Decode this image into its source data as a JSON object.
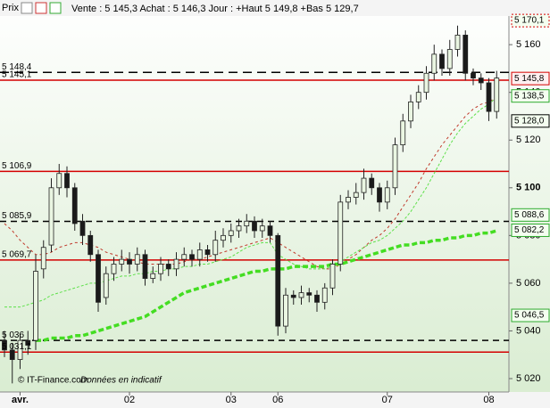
{
  "chart_data": {
    "type": "candlestick",
    "header": {
      "tab": "Prix",
      "quote": "Vente : 5 145,3 Achat : 5 146,3 Jour : +Haut 5 149,8 +Bas 5 129,7"
    },
    "footer": {
      "source": "© IT-Finance.com",
      "note": "Données en indicatif"
    },
    "categories": [
      null,
      null,
      "avr.",
      null,
      null,
      null,
      null,
      null,
      null,
      null,
      null,
      null,
      null,
      null,
      null,
      null,
      "02",
      null,
      null,
      null,
      null,
      null,
      null,
      null,
      null,
      null,
      null,
      null,
      null,
      "03",
      null,
      null,
      null,
      null,
      null,
      "06",
      null,
      null,
      null,
      null,
      null,
      null,
      null,
      null,
      null,
      null,
      null,
      null,
      null,
      "07",
      null,
      null,
      null,
      null,
      null,
      null,
      null,
      null,
      null,
      null,
      null,
      null,
      "08",
      null
    ],
    "open": [
      5036,
      5032,
      5028,
      5036,
      5036,
      5066,
      5076,
      5100,
      5106,
      5100,
      5086,
      5080,
      5072,
      5054,
      5064,
      5068,
      5070,
      5068,
      5072,
      5062,
      5064,
      5068,
      5066,
      5070,
      5072,
      5070,
      5074,
      5072,
      5078,
      5080,
      5082,
      5084,
      5086,
      5082,
      5084,
      5080,
      5042,
      5055,
      5054,
      5056,
      5055,
      5052,
      5058,
      5068,
      5094,
      5096,
      5098,
      5104,
      5100,
      5094,
      5100,
      5118,
      5128,
      5136,
      5140,
      5148,
      5156,
      5150,
      5158,
      5164,
      5148,
      5146,
      5144,
      5132
    ],
    "high": [
      5040,
      5035,
      5039,
      5040,
      5072,
      5078,
      5104,
      5110,
      5109,
      5102,
      5089,
      5082,
      5074,
      5067,
      5071,
      5074,
      5073,
      5075,
      5074,
      5067,
      5071,
      5070,
      5073,
      5075,
      5074,
      5077,
      5076,
      5082,
      5083,
      5085,
      5087,
      5089,
      5088,
      5087,
      5086,
      5081,
      5058,
      5057,
      5059,
      5058,
      5057,
      5060,
      5070,
      5097,
      5099,
      5102,
      5108,
      5106,
      5102,
      5103,
      5121,
      5131,
      5139,
      5143,
      5151,
      5160,
      5158,
      5162,
      5168,
      5166,
      5150,
      5148,
      5146,
      5149
    ],
    "low": [
      5029,
      5018,
      5024,
      5030,
      5032,
      5062,
      5073,
      5097,
      5096,
      5082,
      5076,
      5069,
      5048,
      5051,
      5061,
      5065,
      5064,
      5065,
      5059,
      5060,
      5061,
      5063,
      5063,
      5067,
      5067,
      5067,
      5069,
      5069,
      5075,
      5077,
      5079,
      5081,
      5079,
      5079,
      5077,
      5038,
      5039,
      5051,
      5051,
      5052,
      5048,
      5049,
      5055,
      5065,
      5091,
      5093,
      5095,
      5097,
      5090,
      5091,
      5097,
      5115,
      5125,
      5133,
      5137,
      5145,
      5147,
      5147,
      5155,
      5145,
      5143,
      5141,
      5128,
      5129
    ],
    "close": [
      5032,
      5028,
      5036,
      5034,
      5065,
      5075,
      5100,
      5106,
      5100,
      5085,
      5080,
      5072,
      5052,
      5064,
      5068,
      5070,
      5068,
      5072,
      5062,
      5064,
      5068,
      5066,
      5070,
      5072,
      5070,
      5074,
      5072,
      5078,
      5080,
      5082,
      5084,
      5086,
      5082,
      5084,
      5080,
      5042,
      5055,
      5054,
      5056,
      5055,
      5052,
      5058,
      5068,
      5094,
      5096,
      5098,
      5104,
      5100,
      5094,
      5100,
      5118,
      5128,
      5136,
      5140,
      5148,
      5156,
      5150,
      5158,
      5164,
      5148,
      5146,
      5144,
      5132,
      5146
    ],
    "up_color": "#eaf6e2",
    "down_color": "#1a1a1a",
    "series": [
      {
        "color": "#c0392b",
        "width": 1,
        "dash": "3,3",
        "values": [
          5085,
          5082,
          5078,
          5075,
          5072,
          5072,
          5073,
          5075,
          5076,
          5077,
          5077,
          5076,
          5075,
          5073,
          5072,
          5071,
          5070,
          5069,
          5068,
          5068,
          5068,
          5068,
          5068,
          5069,
          5070,
          5070,
          5071,
          5072,
          5073,
          5074,
          5075,
          5076,
          5077,
          5078,
          5079,
          5077,
          5075,
          5073,
          5071,
          5069,
          5067,
          5066,
          5066,
          5068,
          5070,
          5072,
          5075,
          5078,
          5080,
          5083,
          5087,
          5092,
          5097,
          5102,
          5108,
          5113,
          5118,
          5122,
          5126,
          5130,
          5133,
          5135,
          5136,
          5138
        ]
      },
      {
        "color": "#5ee04a",
        "width": 1,
        "dash": "3,2",
        "values": [
          5050,
          5050,
          5050,
          5051,
          5052,
          5053,
          5055,
          5056,
          5057,
          5058,
          5059,
          5060,
          5060,
          5061,
          5062,
          5063,
          5063,
          5064,
          5064,
          5065,
          5065,
          5066,
          5066,
          5067,
          5067,
          5068,
          5068,
          5069,
          5070,
          5071,
          5073,
          5075,
          5076,
          5077,
          5077,
          5072,
          5070,
          5068,
          5067,
          5066,
          5066,
          5066,
          5067,
          5069,
          5071,
          5073,
          5075,
          5077,
          5078,
          5080,
          5083,
          5086,
          5090,
          5095,
          5100,
          5106,
          5112,
          5118,
          5123,
          5127,
          5130,
          5133,
          5135,
          5138
        ]
      },
      {
        "color": "#44dd22",
        "width": 3.5,
        "dash": "6,3",
        "values": [
          null,
          null,
          null,
          null,
          5036,
          5036,
          5037,
          5037,
          5037,
          5038,
          5038,
          5039,
          5040,
          5041,
          5042,
          5043,
          5044,
          5045,
          5046,
          5048,
          5050,
          5052,
          5054,
          5056,
          5057,
          5058,
          5059,
          5060,
          5061,
          5062,
          5063,
          5064,
          5065,
          5065,
          5066,
          5066,
          5066,
          5067,
          5067,
          5067,
          5067,
          5067,
          5068,
          5068,
          5069,
          5070,
          5071,
          5072,
          5073,
          5074,
          5075,
          5076,
          5076,
          5077,
          5077,
          5078,
          5078,
          5079,
          5079,
          5080,
          5080,
          5081,
          5081,
          5082
        ]
      }
    ],
    "levels": [
      {
        "value": 5148.4,
        "label": "5 148,4",
        "color": "#000",
        "dash": "10,6"
      },
      {
        "value": 5145.1,
        "label": "5 145,1",
        "color": "#d40000",
        "dash": null
      },
      {
        "value": 5106.9,
        "label": "5 106,9",
        "color": "#d40000",
        "dash": null
      },
      {
        "value": 5085.9,
        "label": "5 085,9",
        "color": "#000",
        "dash": "7,5"
      },
      {
        "value": 5069.7,
        "label": "5 069,7",
        "color": "#d40000",
        "dash": null
      },
      {
        "value": 5036,
        "label": "5 036",
        "color": "#000",
        "dash": "7,5"
      },
      {
        "value": 5031.1,
        "label": "5 031,1",
        "color": "#d40000",
        "dash": null
      }
    ],
    "badges": [
      {
        "value": 5170.1,
        "label": "5 170,1",
        "color": "#d40000"
      },
      {
        "value": 5145.8,
        "label": "5 145,8",
        "color": "#d40000"
      },
      {
        "value": 5138.5,
        "label": "5 138,5",
        "color": "#2eaa2e"
      },
      {
        "value": 5128.0,
        "label": "5 128,0",
        "color": "#000"
      },
      {
        "value": 5088.6,
        "label": "5 088,6",
        "color": "#2eaa2e"
      },
      {
        "value": 5082.2,
        "label": "5 082,2",
        "color": "#2eaa2e"
      },
      {
        "value": 5046.5,
        "label": "5 046,5",
        "color": "#2eaa2e"
      }
    ],
    "ylim": [
      5014.4,
      5172
    ],
    "yticks": [
      {
        "value": 5020,
        "label": "5 020"
      },
      {
        "value": 5040,
        "label": "5 040"
      },
      {
        "value": 5060,
        "label": "5 060"
      },
      {
        "value": 5080,
        "label": "5 080"
      },
      {
        "value": 5100,
        "label": "5 100"
      },
      {
        "value": 5120,
        "label": "5 120"
      },
      {
        "value": 5140,
        "label": "5 140"
      },
      {
        "value": 5160,
        "label": "5 160"
      }
    ]
  }
}
